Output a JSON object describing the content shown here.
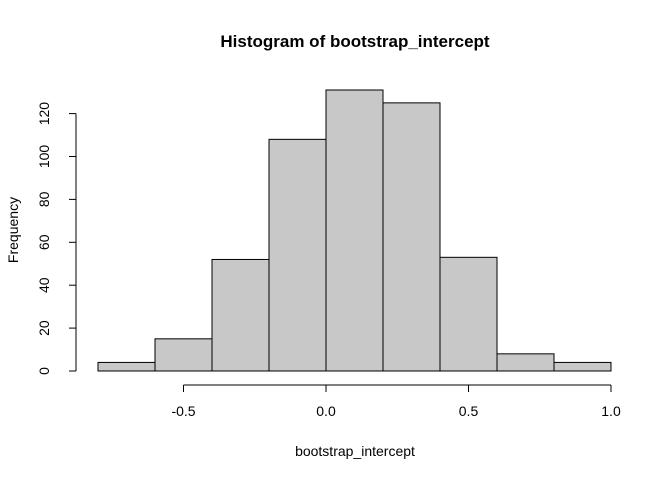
{
  "chart_data": {
    "type": "bar",
    "title": "Histogram of bootstrap_intercept",
    "xlabel": "bootstrap_intercept",
    "ylabel": "Frequency",
    "bins": [
      {
        "from": -0.8,
        "to": -0.6,
        "count": 4
      },
      {
        "from": -0.6,
        "to": -0.4,
        "count": 15
      },
      {
        "from": -0.4,
        "to": -0.2,
        "count": 52
      },
      {
        "from": -0.2,
        "to": 0.0,
        "count": 108
      },
      {
        "from": 0.0,
        "to": 0.2,
        "count": 131
      },
      {
        "from": 0.2,
        "to": 0.4,
        "count": 125
      },
      {
        "from": 0.4,
        "to": 0.6,
        "count": 53
      },
      {
        "from": 0.6,
        "to": 0.8,
        "count": 8
      },
      {
        "from": 0.8,
        "to": 1.0,
        "count": 4
      }
    ],
    "xlim": [
      -0.8,
      1.0
    ],
    "ylim": [
      0,
      131
    ],
    "x_ticks": [
      -0.5,
      0.0,
      0.5,
      1.0
    ],
    "x_tick_labels": [
      "-0.5",
      "0.0",
      "0.5",
      "1.0"
    ],
    "y_ticks": [
      0,
      20,
      40,
      60,
      80,
      100,
      120
    ],
    "y_tick_labels": [
      "0",
      "20",
      "40",
      "60",
      "80",
      "100",
      "120"
    ],
    "grid": false,
    "colors": {
      "bar_fill": "#c8c8c8",
      "bar_edge": "#000000"
    }
  }
}
